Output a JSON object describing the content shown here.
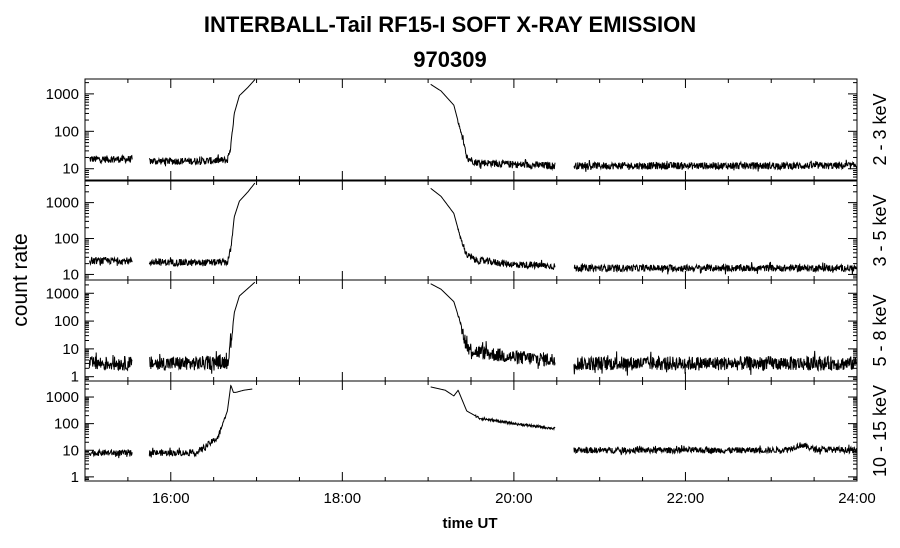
{
  "header": {
    "title": "INTERBALL-Tail RF15-I SOFT X-RAY EMISSION",
    "subtitle": "970309"
  },
  "chart_data": {
    "type": "line",
    "title": "INTERBALL-Tail RF15-I SOFT X-RAY EMISSION",
    "subtitle": "970309",
    "xlabel": "time UT",
    "ylabel": "count rate",
    "x_unit": "hours UT",
    "xlim": [
      15.0,
      24.0
    ],
    "x_ticks": [
      16,
      18,
      20,
      22,
      24
    ],
    "x_tick_labels": [
      "16:00",
      "18:00",
      "20:00",
      "22:00",
      "24:00"
    ],
    "y_scale": "log",
    "grid": false,
    "line_color": "#000000",
    "panels": [
      {
        "name": "2 - 3 keV",
        "ylim": [
          5,
          2500
        ],
        "y_ticks": [
          10,
          100,
          1000
        ],
        "y_tick_labels": [
          "10",
          "100",
          "1000"
        ],
        "noise_factor": 1.25,
        "segments": [
          {
            "x": [
              15.05,
              15.55
            ],
            "y": [
              18,
              18
            ]
          },
          {
            "x": [
              15.75,
              16.3,
              16.66,
              16.7,
              16.74,
              16.8,
              16.9,
              16.98
            ],
            "y": [
              16,
              16,
              17,
              40,
              300,
              900,
              1500,
              2400
            ]
          },
          {
            "x": [
              19.03,
              19.15,
              19.3,
              19.38,
              19.45,
              19.55,
              20.0,
              20.48
            ],
            "y": [
              1800,
              1200,
              500,
              100,
              20,
              15,
              13,
              12
            ]
          },
          {
            "x": [
              20.7,
              23.0,
              24.0
            ],
            "y": [
              12,
              12,
              12
            ]
          }
        ]
      },
      {
        "name": "3 - 5 keV",
        "ylim": [
          7,
          4000
        ],
        "y_ticks": [
          10,
          100,
          1000
        ],
        "y_tick_labels": [
          "10",
          "100",
          "1000"
        ],
        "noise_factor": 1.25,
        "segments": [
          {
            "x": [
              15.05,
              15.55
            ],
            "y": [
              24,
              24
            ]
          },
          {
            "x": [
              15.75,
              16.3,
              16.66,
              16.7,
              16.74,
              16.8,
              16.9,
              16.98
            ],
            "y": [
              22,
              21,
              22,
              50,
              400,
              1100,
              2000,
              3500
            ]
          },
          {
            "x": [
              19.03,
              19.15,
              19.3,
              19.38,
              19.45,
              19.55,
              20.0,
              20.48
            ],
            "y": [
              2500,
              1500,
              500,
              100,
              35,
              25,
              19,
              17
            ]
          },
          {
            "x": [
              20.7,
              23.0,
              24.0
            ],
            "y": [
              15,
              15,
              15
            ]
          }
        ]
      },
      {
        "name": "5 - 8 keV",
        "ylim": [
          0.7,
          3000
        ],
        "y_ticks": [
          1,
          10,
          100,
          1000
        ],
        "y_tick_labels": [
          "1",
          "10",
          "100",
          "1000"
        ],
        "noise_factor": 1.8,
        "segments": [
          {
            "x": [
              15.05,
              15.55
            ],
            "y": [
              3,
              3
            ]
          },
          {
            "x": [
              15.75,
              16.3,
              16.66,
              16.7,
              16.74,
              16.8,
              16.9,
              16.98
            ],
            "y": [
              3,
              3,
              3.5,
              15,
              200,
              800,
              1500,
              2500
            ]
          },
          {
            "x": [
              19.03,
              19.15,
              19.3,
              19.38,
              19.45,
              19.55,
              20.0,
              20.48
            ],
            "y": [
              2200,
              1400,
              500,
              80,
              12,
              8,
              5,
              4
            ]
          },
          {
            "x": [
              20.7,
              23.0,
              24.0
            ],
            "y": [
              3,
              3,
              3
            ]
          }
        ]
      },
      {
        "name": "10 - 15 keV",
        "ylim": [
          0.7,
          4000
        ],
        "y_ticks": [
          1,
          10,
          100,
          1000
        ],
        "y_tick_labels": [
          "1",
          "10",
          "100",
          "1000"
        ],
        "noise_factor": 1.3,
        "segments": [
          {
            "x": [
              15.05,
              15.55
            ],
            "y": [
              8,
              8
            ]
          },
          {
            "x": [
              15.75,
              16.3,
              16.55,
              16.66,
              16.7,
              16.73,
              16.76,
              16.85,
              16.95
            ],
            "y": [
              8,
              8,
              30,
              300,
              2800,
              1500,
              1500,
              1800,
              2000
            ]
          },
          {
            "x": [
              19.03,
              19.2,
              19.3,
              19.35,
              19.45,
              19.6,
              20.0,
              20.48
            ],
            "y": [
              2400,
              1800,
              1100,
              1800,
              300,
              160,
              100,
              65
            ]
          },
          {
            "x": [
              20.7,
              23.0,
              23.2,
              23.35,
              23.5,
              24.0
            ],
            "y": [
              10,
              10,
              11,
              16,
              11,
              10
            ]
          }
        ]
      }
    ]
  }
}
